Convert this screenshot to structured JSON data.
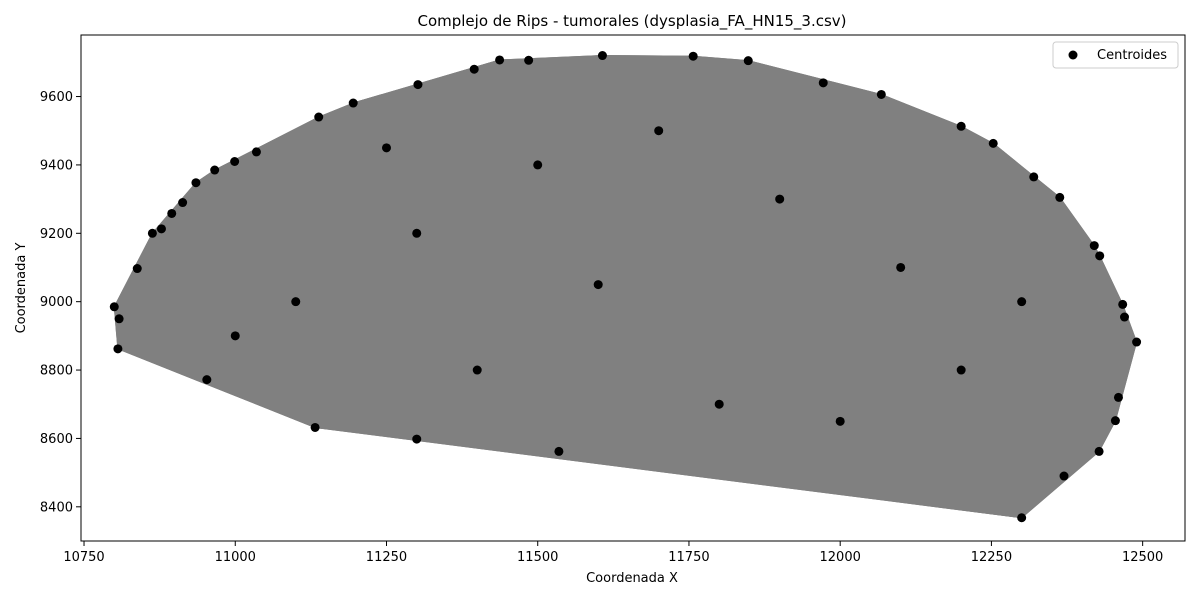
{
  "chart_data": {
    "type": "scatter",
    "title": "Complejo de Rips - tumorales (dysplasia_FA_HN15_3.csv)",
    "xlabel": "Coordenada X",
    "ylabel": "Coordenada Y",
    "xlim": [
      10745,
      12570
    ],
    "ylim": [
      8300,
      9780
    ],
    "xticks": [
      10750,
      11000,
      11250,
      11500,
      11750,
      12000,
      12250,
      12500
    ],
    "xtick_labels": [
      "10750",
      "11000",
      "11250",
      "11500",
      "11750",
      "12000",
      "12250",
      "12500"
    ],
    "yticks": [
      8400,
      8600,
      8800,
      9000,
      9200,
      9400,
      9600
    ],
    "ytick_labels": [
      "8400",
      "8600",
      "8800",
      "9000",
      "9200",
      "9400",
      "9600"
    ],
    "grid": false,
    "legend": {
      "position": "top-right",
      "entries": [
        "Centroides"
      ]
    },
    "colors": {
      "points": "#000000",
      "edges": "#808080"
    },
    "series": [
      {
        "name": "Centroides",
        "points": [
          [
            10800,
            8985
          ],
          [
            10808,
            8950
          ],
          [
            10806,
            8862
          ],
          [
            10838,
            9097
          ],
          [
            10863,
            9200
          ],
          [
            10878,
            9213
          ],
          [
            10895,
            9258
          ],
          [
            10913,
            9290
          ],
          [
            10935,
            9348
          ],
          [
            10966,
            9385
          ],
          [
            10999,
            9410
          ],
          [
            11035,
            9438
          ],
          [
            11138,
            9540
          ],
          [
            11195,
            9581
          ],
          [
            11302,
            9635
          ],
          [
            11395,
            9680
          ],
          [
            11437,
            9707
          ],
          [
            11485,
            9706
          ],
          [
            11607,
            9720
          ],
          [
            11757,
            9718
          ],
          [
            11848,
            9705
          ],
          [
            11972,
            9640
          ],
          [
            12068,
            9606
          ],
          [
            12200,
            9513
          ],
          [
            12253,
            9463
          ],
          [
            12320,
            9365
          ],
          [
            12363,
            9305
          ],
          [
            12420,
            9164
          ],
          [
            12429,
            9134
          ],
          [
            12467,
            8992
          ],
          [
            12470,
            8955
          ],
          [
            12490,
            8882
          ],
          [
            12460,
            8720
          ],
          [
            12455,
            8652
          ],
          [
            12428,
            8562
          ],
          [
            12370,
            8490
          ],
          [
            12300,
            8368
          ],
          [
            11535,
            8562
          ],
          [
            11300,
            8598
          ],
          [
            11132,
            8632
          ],
          [
            10953,
            8772
          ],
          [
            11100,
            9000
          ],
          [
            11300,
            9200
          ],
          [
            11500,
            9400
          ],
          [
            11700,
            9500
          ],
          [
            11900,
            9300
          ],
          [
            12100,
            9100
          ],
          [
            12200,
            8800
          ],
          [
            11800,
            8700
          ],
          [
            11400,
            8800
          ],
          [
            11000,
            8900
          ],
          [
            11600,
            9050
          ],
          [
            12000,
            8650
          ],
          [
            11250,
            9450
          ],
          [
            12300,
            9000
          ]
        ]
      }
    ]
  }
}
